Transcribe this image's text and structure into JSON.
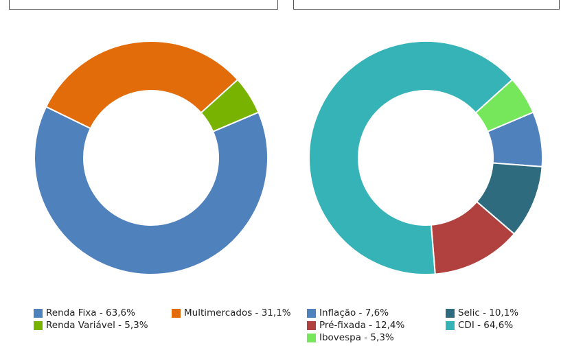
{
  "chart_data": [
    {
      "type": "pie",
      "donut": true,
      "title": "",
      "legend_position": "bottom",
      "slices": [
        {
          "label": "Renda Fixa - 63,6%",
          "value": 63.6,
          "color": "#4f81bd"
        },
        {
          "label": "Multimercados - 31,1%",
          "value": 31.1,
          "color": "#e36c0a"
        },
        {
          "label": "Renda Variável - 5,3%",
          "value": 5.3,
          "color": "#77b300"
        }
      ]
    },
    {
      "type": "pie",
      "donut": true,
      "title": "",
      "legend_position": "bottom",
      "slices": [
        {
          "label": "Inflação - 7,6%",
          "value": 7.6,
          "color": "#4f81bd"
        },
        {
          "label": "Selic - 10,1%",
          "value": 10.1,
          "color": "#2e6b7e"
        },
        {
          "label": "Pré-fixada - 12,4%",
          "value": 12.4,
          "color": "#b0413e"
        },
        {
          "label": "CDI - 64,6%",
          "value": 64.6,
          "color": "#36b3b7"
        },
        {
          "label": "Ibovespa - 5,3%",
          "value": 5.3,
          "color": "#76e65a"
        }
      ]
    }
  ]
}
